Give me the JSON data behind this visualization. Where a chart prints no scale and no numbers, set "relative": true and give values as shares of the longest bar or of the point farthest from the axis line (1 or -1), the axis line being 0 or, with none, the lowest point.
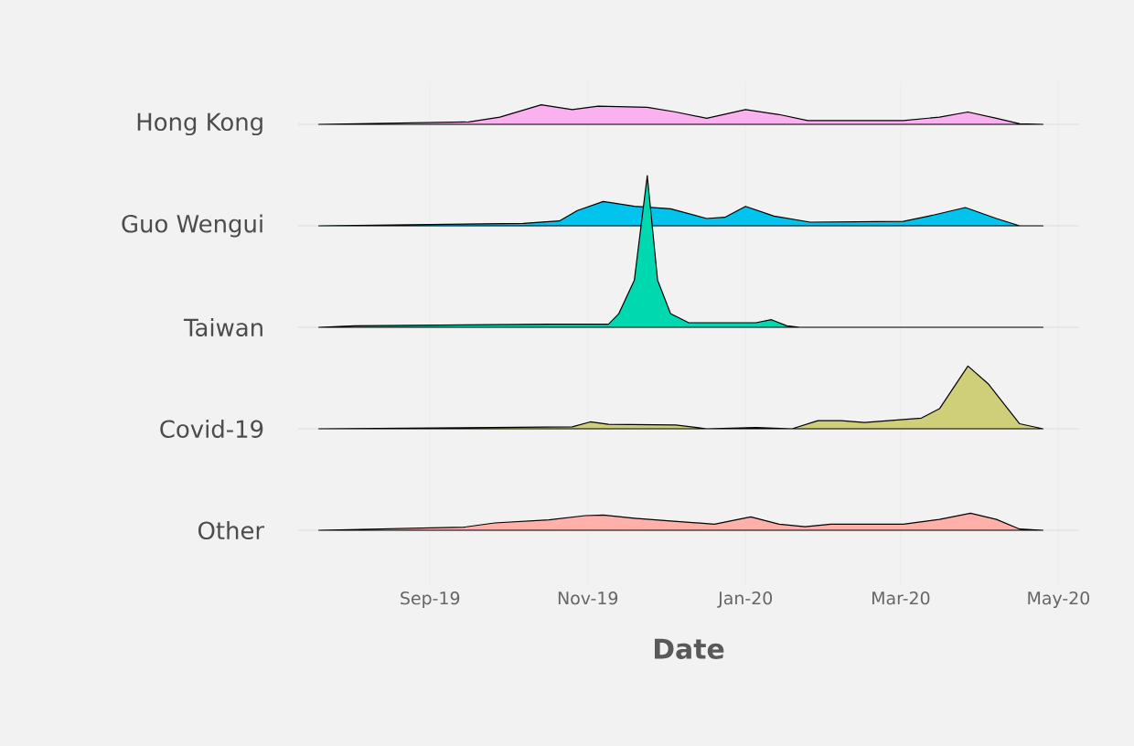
{
  "chart_data": [
    {
      "type": "area",
      "relative": true,
      "ylabel": "Hong Kong",
      "color": "#fbb0f0",
      "xlim": [
        "2019-07-12",
        "2020-05-09"
      ],
      "x": [
        "2019-07-20",
        "2019-09-16",
        "2019-09-28",
        "2019-10-14",
        "2019-10-26",
        "2019-11-05",
        "2019-11-24",
        "2019-12-05",
        "2019-12-17",
        "2020-01-01",
        "2020-01-14",
        "2020-01-25",
        "2020-03-02",
        "2020-03-16",
        "2020-03-27",
        "2020-04-07",
        "2020-04-16",
        "2020-04-25"
      ],
      "values": [
        0,
        0.12,
        0.37,
        1,
        0.75,
        0.93,
        0.87,
        0.63,
        0.31,
        0.75,
        0.5,
        0.19,
        0.19,
        0.37,
        0.63,
        0.31,
        0.03,
        0
      ]
    },
    {
      "type": "area",
      "relative": true,
      "ylabel": "Guo Wengui",
      "color": "#00c4ee",
      "xlim": [
        "2019-07-12",
        "2020-05-09"
      ],
      "x": [
        "2019-07-20",
        "2019-10-07",
        "2019-10-21",
        "2019-10-28",
        "2019-11-07",
        "2019-11-19",
        "2019-12-03",
        "2019-12-17",
        "2019-12-24",
        "2020-01-01",
        "2020-01-12",
        "2020-01-26",
        "2020-03-02",
        "2020-03-14",
        "2020-03-26",
        "2020-04-07",
        "2020-04-16",
        "2020-04-25"
      ],
      "values": [
        0,
        0.1,
        0.2,
        0.63,
        1,
        0.8,
        0.7,
        0.3,
        0.35,
        0.8,
        0.4,
        0.15,
        0.18,
        0.45,
        0.75,
        0.3,
        0,
        0
      ]
    },
    {
      "type": "area",
      "relative": true,
      "ylabel": "Taiwan",
      "color": "#00d8b0",
      "xlim": [
        "2019-07-12",
        "2020-05-09"
      ],
      "x": [
        "2019-07-20",
        "2019-08-03",
        "2019-10-17",
        "2019-11-09",
        "2019-11-13",
        "2019-11-19",
        "2019-11-24",
        "2019-11-28",
        "2019-12-03",
        "2019-12-10",
        "2020-01-05",
        "2020-01-11",
        "2020-01-17",
        "2020-01-22",
        "2020-04-25"
      ],
      "values": [
        0,
        0.01,
        0.02,
        0.02,
        0.09,
        0.31,
        1,
        0.31,
        0.09,
        0.03,
        0.03,
        0.05,
        0.01,
        0,
        0
      ]
    },
    {
      "type": "area",
      "relative": true,
      "ylabel": "Covid-19",
      "color": "#cfcf7a",
      "xlim": [
        "2019-07-12",
        "2020-05-09"
      ],
      "x": [
        "2019-07-20",
        "2019-10-26",
        "2019-11-02",
        "2019-11-09",
        "2019-12-05",
        "2019-12-17",
        "2020-01-05",
        "2020-01-19",
        "2020-01-29",
        "2020-02-07",
        "2020-02-16",
        "2020-03-09",
        "2020-03-16",
        "2020-03-27",
        "2020-04-04",
        "2020-04-16",
        "2020-04-25"
      ],
      "values": [
        0,
        0.03,
        0.11,
        0.07,
        0.06,
        0,
        0.02,
        0,
        0.13,
        0.13,
        0.1,
        0.17,
        0.32,
        1,
        0.71,
        0.08,
        0
      ]
    },
    {
      "type": "area",
      "relative": true,
      "ylabel": "Other",
      "xlabel": "Date",
      "grid": "x",
      "color": "#ffb0aa",
      "xlim": [
        "2019-07-12",
        "2020-05-09"
      ],
      "xticks": [
        {
          "value": "2019-09-01",
          "label": "Sep-19"
        },
        {
          "value": "2019-11-01",
          "label": "Nov-19"
        },
        {
          "value": "2020-01-01",
          "label": "Jan-20"
        },
        {
          "value": "2020-03-01",
          "label": "Mar-20"
        },
        {
          "value": "2020-05-01",
          "label": "May-20"
        }
      ],
      "x": [
        "2019-07-20",
        "2019-09-14",
        "2019-09-26",
        "2019-10-17",
        "2019-10-31",
        "2019-11-07",
        "2019-11-19",
        "2019-12-03",
        "2019-12-20",
        "2020-01-03",
        "2020-01-14",
        "2020-01-24",
        "2020-02-03",
        "2020-03-02",
        "2020-03-16",
        "2020-03-28",
        "2020-04-07",
        "2020-04-16",
        "2020-04-25"
      ],
      "values": [
        0,
        0.18,
        0.43,
        0.61,
        0.86,
        0.89,
        0.71,
        0.54,
        0.36,
        0.79,
        0.36,
        0.21,
        0.36,
        0.36,
        0.64,
        1,
        0.64,
        0.07,
        0
      ]
    }
  ]
}
